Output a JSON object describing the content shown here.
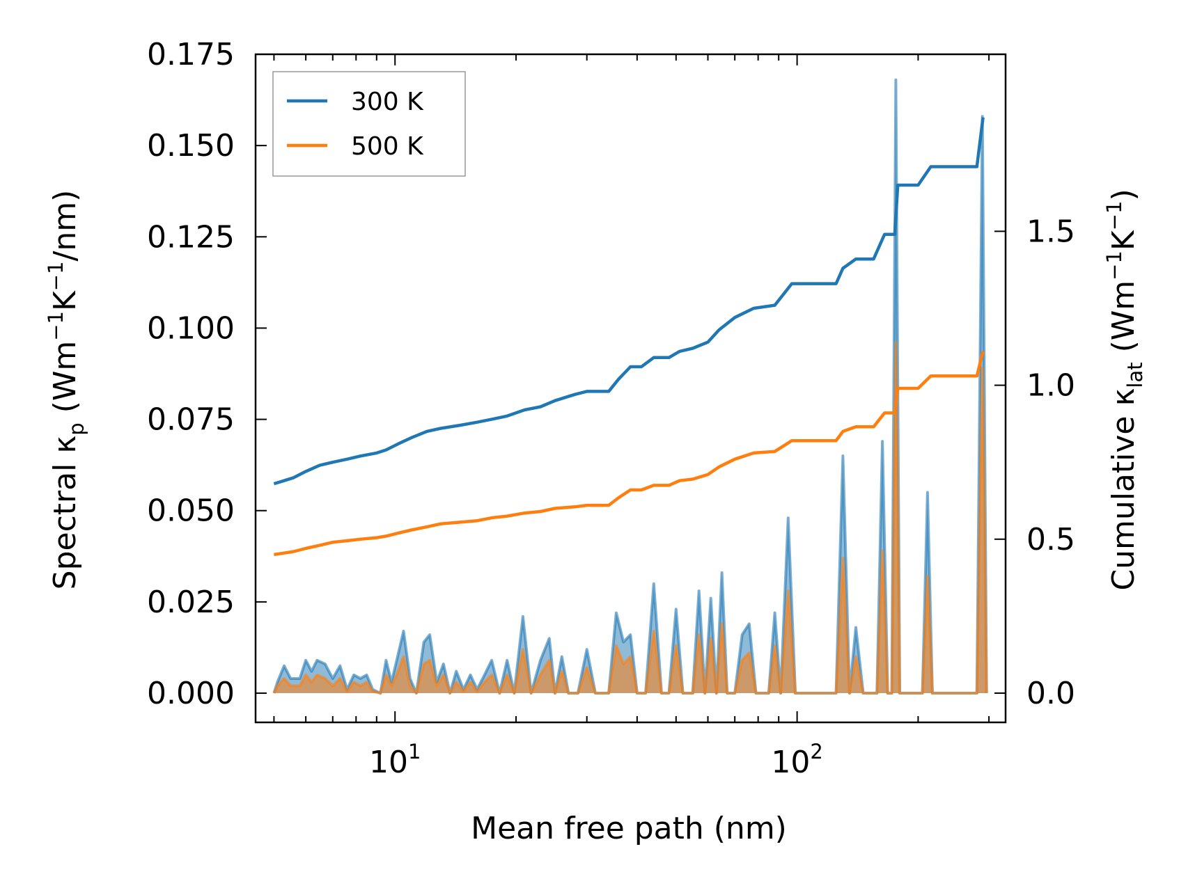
{
  "chart_data": {
    "type": "line",
    "xscale": "log",
    "xlabel": "Mean free path (nm)",
    "xlim": [
      4.5,
      330
    ],
    "xticks": [
      {
        "value": 10,
        "base": "10",
        "exp": "1"
      },
      {
        "value": 100,
        "base": "10",
        "exp": "2"
      }
    ],
    "left_axis": {
      "label": {
        "pre": "Spectral κ",
        "sub": "p",
        "mid1": " (Wm",
        "sup1": "−1",
        "mid2": "K",
        "sup2": "−1",
        "post": "/nm)"
      },
      "ylim": [
        -0.008,
        0.175
      ],
      "ticks": [
        0.0,
        0.025,
        0.05,
        0.075,
        0.1,
        0.125,
        0.15,
        0.175
      ],
      "tick_labels": [
        "0.000",
        "0.025",
        "0.050",
        "0.075",
        "0.100",
        "0.125",
        "0.150",
        "0.175"
      ]
    },
    "right_axis": {
      "label": {
        "pre": "Cumulative κ",
        "sub": "lat",
        "mid1": " (Wm",
        "sup1": "−1",
        "mid2": "K",
        "sup2": "−1",
        "post": ")"
      },
      "ylim": [
        -0.095,
        2.075
      ],
      "ticks": [
        0.0,
        0.5,
        1.0,
        1.5
      ],
      "tick_labels": [
        "0.0",
        "0.5",
        "1.0",
        "1.5"
      ]
    },
    "legend": {
      "position": "upper-left",
      "entries": [
        {
          "label": "300 K",
          "color": "#1f77b4"
        },
        {
          "label": "500 K",
          "color": "#ff7f0e"
        }
      ]
    },
    "series": [
      {
        "name": "300 K",
        "color": "#1f77b4",
        "cumulative": [
          [
            5.0,
            0.68
          ],
          [
            5.3,
            0.69
          ],
          [
            5.6,
            0.7
          ],
          [
            6.0,
            0.72
          ],
          [
            6.5,
            0.74
          ],
          [
            7.0,
            0.75
          ],
          [
            7.6,
            0.76
          ],
          [
            8.2,
            0.77
          ],
          [
            9.0,
            0.78
          ],
          [
            9.5,
            0.79
          ],
          [
            10.2,
            0.81
          ],
          [
            11.0,
            0.83
          ],
          [
            12.0,
            0.85
          ],
          [
            13.0,
            0.86
          ],
          [
            14.5,
            0.87
          ],
          [
            16.0,
            0.88
          ],
          [
            17.5,
            0.89
          ],
          [
            19.0,
            0.9
          ],
          [
            21.0,
            0.92
          ],
          [
            23.0,
            0.93
          ],
          [
            25.0,
            0.95
          ],
          [
            28.0,
            0.97
          ],
          [
            30.0,
            0.98
          ],
          [
            34.0,
            0.98
          ],
          [
            36.0,
            1.02
          ],
          [
            38.5,
            1.06
          ],
          [
            41.0,
            1.06
          ],
          [
            44.0,
            1.09
          ],
          [
            48.0,
            1.09
          ],
          [
            51.0,
            1.11
          ],
          [
            55.0,
            1.12
          ],
          [
            60.0,
            1.14
          ],
          [
            64.0,
            1.18
          ],
          [
            70.0,
            1.22
          ],
          [
            78.0,
            1.25
          ],
          [
            88.0,
            1.26
          ],
          [
            97.0,
            1.33
          ],
          [
            105.0,
            1.33
          ],
          [
            125.0,
            1.33
          ],
          [
            130.0,
            1.38
          ],
          [
            140.0,
            1.41
          ],
          [
            155.0,
            1.41
          ],
          [
            165.0,
            1.49
          ],
          [
            175.0,
            1.49
          ],
          [
            178.0,
            1.65
          ],
          [
            200.0,
            1.65
          ],
          [
            215.0,
            1.71
          ],
          [
            280.0,
            1.71
          ],
          [
            290.0,
            1.87
          ]
        ],
        "spectral": [
          [
            5.0,
            0.0
          ],
          [
            5.1,
            0.003
          ],
          [
            5.3,
            0.0075
          ],
          [
            5.5,
            0.004
          ],
          [
            5.8,
            0.004
          ],
          [
            6.0,
            0.009
          ],
          [
            6.2,
            0.006
          ],
          [
            6.4,
            0.009
          ],
          [
            6.7,
            0.008
          ],
          [
            7.0,
            0.004
          ],
          [
            7.3,
            0.0075
          ],
          [
            7.6,
            0.001
          ],
          [
            7.9,
            0.005
          ],
          [
            8.2,
            0.004
          ],
          [
            8.5,
            0.005
          ],
          [
            8.8,
            0.001
          ],
          [
            9.2,
            0.0
          ],
          [
            9.5,
            0.009
          ],
          [
            9.8,
            0.003
          ],
          [
            10.1,
            0.009
          ],
          [
            10.5,
            0.017
          ],
          [
            10.9,
            0.004
          ],
          [
            11.3,
            0.0
          ],
          [
            11.8,
            0.014
          ],
          [
            12.2,
            0.016
          ],
          [
            12.7,
            0.003
          ],
          [
            13.2,
            0.008
          ],
          [
            13.7,
            0.0
          ],
          [
            14.2,
            0.006
          ],
          [
            14.8,
            0.001
          ],
          [
            15.4,
            0.005
          ],
          [
            16.0,
            0.001
          ],
          [
            16.7,
            0.005
          ],
          [
            17.4,
            0.009
          ],
          [
            18.2,
            0.0
          ],
          [
            19.0,
            0.009
          ],
          [
            19.8,
            0.0
          ],
          [
            20.8,
            0.021
          ],
          [
            21.8,
            0.0
          ],
          [
            23.0,
            0.009
          ],
          [
            24.2,
            0.015
          ],
          [
            25.0,
            0.0
          ],
          [
            26.0,
            0.01
          ],
          [
            27.0,
            0.0
          ],
          [
            28.5,
            0.0
          ],
          [
            30.0,
            0.012
          ],
          [
            31.5,
            0.0
          ],
          [
            34.0,
            0.0
          ],
          [
            35.5,
            0.022
          ],
          [
            37.0,
            0.014
          ],
          [
            38.5,
            0.016
          ],
          [
            40.0,
            0.0
          ],
          [
            42.0,
            0.0
          ],
          [
            44.0,
            0.03
          ],
          [
            46.0,
            0.0
          ],
          [
            48.0,
            0.0
          ],
          [
            50.0,
            0.023
          ],
          [
            52.0,
            0.0
          ],
          [
            55.0,
            0.0
          ],
          [
            57.0,
            0.028
          ],
          [
            59.0,
            0.0
          ],
          [
            61.0,
            0.026
          ],
          [
            63.0,
            0.0
          ],
          [
            65.0,
            0.033
          ],
          [
            67.0,
            0.0
          ],
          [
            70.0,
            0.0
          ],
          [
            73.0,
            0.016
          ],
          [
            76.0,
            0.019
          ],
          [
            79.0,
            0.0
          ],
          [
            85.0,
            0.0
          ],
          [
            88.0,
            0.022
          ],
          [
            91.0,
            0.0
          ],
          [
            95.0,
            0.048
          ],
          [
            99.0,
            0.0
          ],
          [
            125.0,
            0.0
          ],
          [
            130.0,
            0.065
          ],
          [
            135.0,
            0.0
          ],
          [
            140.0,
            0.018
          ],
          [
            146.0,
            0.0
          ],
          [
            158.0,
            0.0
          ],
          [
            163.0,
            0.069
          ],
          [
            168.0,
            0.0
          ],
          [
            172.0,
            0.0
          ],
          [
            176.0,
            0.168
          ],
          [
            180.0,
            0.0
          ],
          [
            205.0,
            0.0
          ],
          [
            211.0,
            0.055
          ],
          [
            217.0,
            0.0
          ],
          [
            280.0,
            0.0
          ],
          [
            289.0,
            0.158
          ],
          [
            296.0,
            0.0
          ]
        ]
      },
      {
        "name": "500 K",
        "color": "#ff7f0e",
        "cumulative": [
          [
            5.0,
            0.45
          ],
          [
            5.3,
            0.455
          ],
          [
            5.6,
            0.46
          ],
          [
            6.0,
            0.47
          ],
          [
            6.5,
            0.48
          ],
          [
            7.0,
            0.49
          ],
          [
            7.6,
            0.495
          ],
          [
            8.2,
            0.5
          ],
          [
            9.0,
            0.505
          ],
          [
            9.5,
            0.51
          ],
          [
            10.2,
            0.52
          ],
          [
            11.0,
            0.53
          ],
          [
            12.0,
            0.54
          ],
          [
            13.0,
            0.55
          ],
          [
            14.5,
            0.555
          ],
          [
            16.0,
            0.56
          ],
          [
            17.5,
            0.57
          ],
          [
            19.0,
            0.575
          ],
          [
            21.0,
            0.585
          ],
          [
            23.0,
            0.59
          ],
          [
            25.0,
            0.6
          ],
          [
            28.0,
            0.605
          ],
          [
            30.0,
            0.61
          ],
          [
            34.0,
            0.61
          ],
          [
            36.0,
            0.635
          ],
          [
            38.5,
            0.66
          ],
          [
            41.0,
            0.66
          ],
          [
            44.0,
            0.675
          ],
          [
            48.0,
            0.675
          ],
          [
            51.0,
            0.69
          ],
          [
            55.0,
            0.695
          ],
          [
            60.0,
            0.71
          ],
          [
            64.0,
            0.735
          ],
          [
            70.0,
            0.76
          ],
          [
            78.0,
            0.78
          ],
          [
            88.0,
            0.785
          ],
          [
            97.0,
            0.82
          ],
          [
            105.0,
            0.82
          ],
          [
            125.0,
            0.82
          ],
          [
            130.0,
            0.85
          ],
          [
            140.0,
            0.865
          ],
          [
            155.0,
            0.865
          ],
          [
            165.0,
            0.91
          ],
          [
            175.0,
            0.91
          ],
          [
            178.0,
            0.99
          ],
          [
            200.0,
            0.99
          ],
          [
            215.0,
            1.03
          ],
          [
            280.0,
            1.03
          ],
          [
            290.0,
            1.11
          ]
        ],
        "spectral": [
          [
            5.0,
            0.0
          ],
          [
            5.1,
            0.002
          ],
          [
            5.3,
            0.004
          ],
          [
            5.5,
            0.002
          ],
          [
            5.8,
            0.002
          ],
          [
            6.0,
            0.005
          ],
          [
            6.2,
            0.003
          ],
          [
            6.4,
            0.005
          ],
          [
            6.7,
            0.004
          ],
          [
            7.0,
            0.002
          ],
          [
            7.3,
            0.004
          ],
          [
            7.6,
            0.0005
          ],
          [
            7.9,
            0.003
          ],
          [
            8.2,
            0.002
          ],
          [
            8.5,
            0.003
          ],
          [
            8.8,
            0.0005
          ],
          [
            9.2,
            0.0
          ],
          [
            9.5,
            0.005
          ],
          [
            9.8,
            0.002
          ],
          [
            10.1,
            0.005
          ],
          [
            10.5,
            0.01
          ],
          [
            10.9,
            0.002
          ],
          [
            11.3,
            0.0
          ],
          [
            11.8,
            0.008
          ],
          [
            12.2,
            0.009
          ],
          [
            12.7,
            0.002
          ],
          [
            13.2,
            0.005
          ],
          [
            13.7,
            0.0
          ],
          [
            14.2,
            0.003
          ],
          [
            14.8,
            0.0005
          ],
          [
            15.4,
            0.003
          ],
          [
            16.0,
            0.0005
          ],
          [
            16.7,
            0.003
          ],
          [
            17.4,
            0.005
          ],
          [
            18.2,
            0.0
          ],
          [
            19.0,
            0.005
          ],
          [
            19.8,
            0.0
          ],
          [
            20.8,
            0.012
          ],
          [
            21.8,
            0.0
          ],
          [
            23.0,
            0.005
          ],
          [
            24.2,
            0.009
          ],
          [
            25.0,
            0.0
          ],
          [
            26.0,
            0.006
          ],
          [
            27.0,
            0.0
          ],
          [
            28.5,
            0.0
          ],
          [
            30.0,
            0.007
          ],
          [
            31.5,
            0.0
          ],
          [
            34.0,
            0.0
          ],
          [
            35.5,
            0.013
          ],
          [
            37.0,
            0.008
          ],
          [
            38.5,
            0.01
          ],
          [
            40.0,
            0.0
          ],
          [
            42.0,
            0.0
          ],
          [
            44.0,
            0.017
          ],
          [
            46.0,
            0.0
          ],
          [
            48.0,
            0.0
          ],
          [
            50.0,
            0.013
          ],
          [
            52.0,
            0.0
          ],
          [
            55.0,
            0.0
          ],
          [
            57.0,
            0.016
          ],
          [
            59.0,
            0.0
          ],
          [
            61.0,
            0.015
          ],
          [
            63.0,
            0.0
          ],
          [
            65.0,
            0.019
          ],
          [
            67.0,
            0.0
          ],
          [
            70.0,
            0.0
          ],
          [
            73.0,
            0.009
          ],
          [
            76.0,
            0.011
          ],
          [
            79.0,
            0.0
          ],
          [
            85.0,
            0.0
          ],
          [
            88.0,
            0.013
          ],
          [
            91.0,
            0.0
          ],
          [
            95.0,
            0.028
          ],
          [
            99.0,
            0.0
          ],
          [
            125.0,
            0.0
          ],
          [
            130.0,
            0.037
          ],
          [
            135.0,
            0.0
          ],
          [
            140.0,
            0.01
          ],
          [
            146.0,
            0.0
          ],
          [
            158.0,
            0.0
          ],
          [
            163.0,
            0.039
          ],
          [
            168.0,
            0.0
          ],
          [
            172.0,
            0.0
          ],
          [
            176.0,
            0.096
          ],
          [
            180.0,
            0.0
          ],
          [
            205.0,
            0.0
          ],
          [
            211.0,
            0.032
          ],
          [
            217.0,
            0.0
          ],
          [
            280.0,
            0.0
          ],
          [
            289.0,
            0.089
          ],
          [
            296.0,
            0.0
          ]
        ]
      }
    ]
  }
}
